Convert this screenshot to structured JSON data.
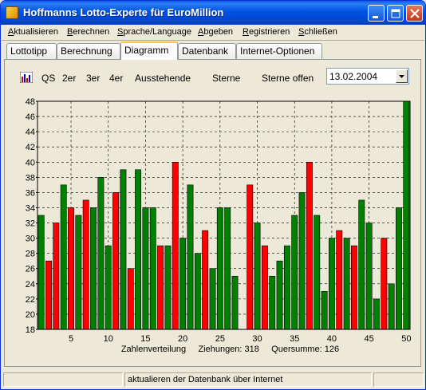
{
  "window": {
    "title": "Hoffmanns Lotto-Experte  für EuroMillion"
  },
  "menu": [
    "Aktualisieren",
    "Berechnen",
    "Sprache/Language",
    "Abgeben",
    "Registrieren",
    "Schließen"
  ],
  "tabs": [
    "Lottotipp",
    "Berechnung",
    "Diagramm",
    "Datenbank",
    "Internet-Optionen"
  ],
  "active_tab": "Diagramm",
  "toolbar": {
    "items": [
      "QS",
      "2er",
      "3er",
      "4er",
      "Ausstehende",
      "Sterne",
      "Sterne offen"
    ],
    "date_value": "13.02.2004"
  },
  "chart_data": {
    "type": "bar",
    "title": "",
    "caption": "Zahlenverteilung     Ziehungen: 318     Quersumme: 126",
    "ylim": [
      18,
      48
    ],
    "yticks": [
      18,
      20,
      22,
      24,
      26,
      28,
      30,
      32,
      34,
      36,
      38,
      40,
      42,
      44,
      46,
      48
    ],
    "xticks": [
      5,
      10,
      15,
      20,
      25,
      30,
      35,
      40,
      45,
      50
    ],
    "grid": true,
    "colors": {
      "green": "#008000",
      "red": "#ff0000",
      "background": "#ece9d8"
    },
    "categories": [
      1,
      2,
      3,
      4,
      5,
      6,
      7,
      8,
      9,
      10,
      11,
      12,
      13,
      14,
      15,
      16,
      17,
      18,
      19,
      20,
      21,
      22,
      23,
      24,
      25,
      26,
      27,
      28,
      29,
      30,
      31,
      32,
      33,
      34,
      35,
      36,
      37,
      38,
      39,
      40,
      41,
      42,
      43,
      44,
      45,
      46,
      47,
      48,
      49,
      50
    ],
    "values": [
      33,
      27,
      32,
      37,
      34,
      33,
      35,
      34,
      38,
      29,
      36,
      39,
      26,
      39,
      34,
      34,
      29,
      29,
      40,
      30,
      37,
      28,
      31,
      26,
      34,
      34,
      25,
      18,
      37,
      32,
      29,
      25,
      27,
      29,
      33,
      36,
      40,
      33,
      23,
      30,
      31,
      30,
      29,
      35,
      32,
      22,
      30,
      24,
      34,
      48
    ],
    "bar_colors": [
      "green",
      "red",
      "red",
      "green",
      "red",
      "green",
      "red",
      "green",
      "green",
      "green",
      "red",
      "green",
      "red",
      "green",
      "green",
      "green",
      "red",
      "green",
      "red",
      "green",
      "green",
      "green",
      "red",
      "green",
      "green",
      "green",
      "green",
      "green",
      "red",
      "green",
      "red",
      "green",
      "green",
      "green",
      "green",
      "green",
      "red",
      "green",
      "green",
      "green",
      "red",
      "green",
      "red",
      "green",
      "green",
      "green",
      "red",
      "green",
      "green",
      "green"
    ]
  },
  "statusbar": {
    "left": "",
    "message": "aktualieren der Datenbank über Internet",
    "right": ""
  }
}
